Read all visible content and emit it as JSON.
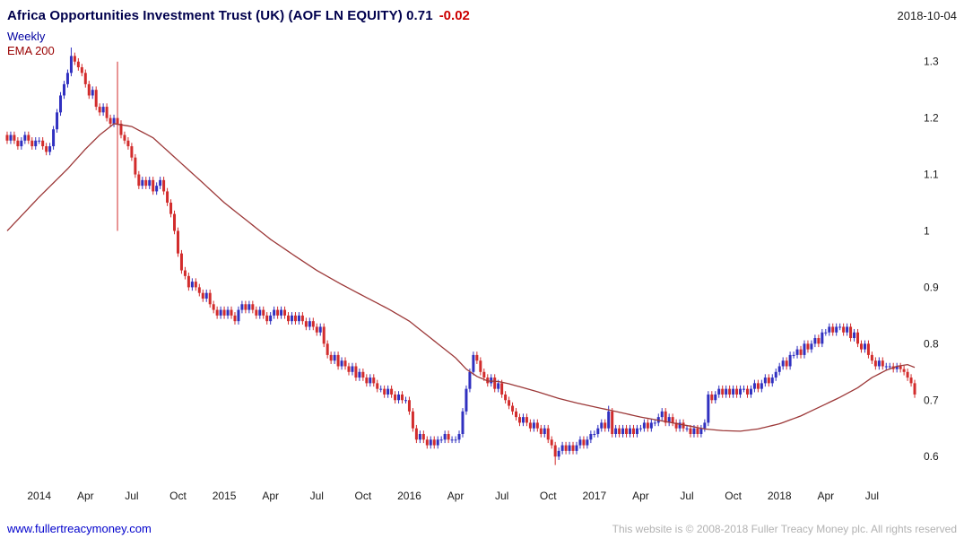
{
  "header": {
    "title": "Africa Opportunities Investment Trust (UK)  (AOF LN EQUITY) 0.71",
    "change": "-0.02",
    "date": "2018-10-04"
  },
  "legend": {
    "timeframe": "Weekly",
    "overlay": "EMA 200"
  },
  "footer": {
    "site": "www.fullertreacymoney.com",
    "copyright": "This website is © 2008-2018 Fuller Treacy Money plc. All rights reserved"
  },
  "colors": {
    "up_candle": "#3030c0",
    "down_candle": "#d22c2c",
    "ema_line": "#9c3838",
    "title_text": "#00004d",
    "change_text": "#cc0000",
    "weekly_label": "#0000a0",
    "ema_label": "#990000",
    "link": "#0000cc",
    "copyright": "#b2b2b2",
    "axis_text": "#1a1a1a"
  },
  "chart_data": {
    "type": "candlestick",
    "timeframe": "weekly",
    "instrument": "AOF LN EQUITY",
    "last_price": 0.71,
    "change": -0.02,
    "overlay": "EMA 200",
    "grid": false,
    "legend_position": "top-left",
    "ylim": [
      0.551,
      1.352
    ],
    "y_ticks": [
      0.6,
      0.7,
      0.8,
      0.9,
      1,
      1.1,
      1.2,
      1.3
    ],
    "x_ticks": [
      {
        "label": "2014",
        "week": 9
      },
      {
        "label": "Apr",
        "week": 22
      },
      {
        "label": "Jul",
        "week": 35
      },
      {
        "label": "Oct",
        "week": 48
      },
      {
        "label": "2015",
        "week": 61
      },
      {
        "label": "Apr",
        "week": 74
      },
      {
        "label": "Jul",
        "week": 87
      },
      {
        "label": "Oct",
        "week": 100
      },
      {
        "label": "2016",
        "week": 113
      },
      {
        "label": "Apr",
        "week": 126
      },
      {
        "label": "Jul",
        "week": 139
      },
      {
        "label": "Oct",
        "week": 152
      },
      {
        "label": "2017",
        "week": 165
      },
      {
        "label": "Apr",
        "week": 178
      },
      {
        "label": "Jul",
        "week": 191
      },
      {
        "label": "Oct",
        "week": 204
      },
      {
        "label": "2018",
        "week": 217
      },
      {
        "label": "Apr",
        "week": 230
      },
      {
        "label": "Jul",
        "week": 243
      }
    ],
    "first_open": 1.17,
    "closes": [
      1.16,
      1.17,
      1.16,
      1.15,
      1.16,
      1.17,
      1.16,
      1.15,
      1.16,
      1.16,
      1.15,
      1.14,
      1.15,
      1.18,
      1.21,
      1.24,
      1.26,
      1.28,
      1.31,
      1.3,
      1.29,
      1.28,
      1.26,
      1.24,
      1.25,
      1.22,
      1.21,
      1.22,
      1.2,
      1.19,
      1.2,
      1.19,
      1.17,
      1.16,
      1.15,
      1.13,
      1.1,
      1.08,
      1.09,
      1.08,
      1.09,
      1.07,
      1.08,
      1.09,
      1.07,
      1.05,
      1.03,
      1.0,
      0.96,
      0.93,
      0.92,
      0.9,
      0.91,
      0.9,
      0.89,
      0.88,
      0.89,
      0.87,
      0.86,
      0.85,
      0.86,
      0.85,
      0.86,
      0.85,
      0.84,
      0.86,
      0.87,
      0.86,
      0.87,
      0.86,
      0.85,
      0.86,
      0.85,
      0.84,
      0.85,
      0.86,
      0.85,
      0.86,
      0.85,
      0.84,
      0.85,
      0.84,
      0.85,
      0.84,
      0.83,
      0.84,
      0.83,
      0.82,
      0.83,
      0.8,
      0.78,
      0.77,
      0.78,
      0.76,
      0.77,
      0.76,
      0.75,
      0.76,
      0.74,
      0.75,
      0.74,
      0.73,
      0.74,
      0.73,
      0.72,
      0.72,
      0.71,
      0.72,
      0.71,
      0.7,
      0.71,
      0.7,
      0.7,
      0.68,
      0.65,
      0.63,
      0.64,
      0.63,
      0.62,
      0.63,
      0.62,
      0.63,
      0.63,
      0.64,
      0.63,
      0.63,
      0.63,
      0.64,
      0.68,
      0.72,
      0.75,
      0.78,
      0.77,
      0.75,
      0.74,
      0.73,
      0.74,
      0.72,
      0.73,
      0.71,
      0.7,
      0.69,
      0.68,
      0.67,
      0.66,
      0.67,
      0.66,
      0.65,
      0.66,
      0.65,
      0.64,
      0.65,
      0.63,
      0.62,
      0.6,
      0.61,
      0.62,
      0.61,
      0.62,
      0.61,
      0.62,
      0.63,
      0.62,
      0.63,
      0.64,
      0.64,
      0.65,
      0.66,
      0.65,
      0.68,
      0.64,
      0.65,
      0.64,
      0.65,
      0.64,
      0.65,
      0.64,
      0.65,
      0.65,
      0.66,
      0.65,
      0.66,
      0.66,
      0.67,
      0.68,
      0.66,
      0.67,
      0.66,
      0.65,
      0.66,
      0.65,
      0.65,
      0.64,
      0.65,
      0.64,
      0.65,
      0.66,
      0.71,
      0.7,
      0.71,
      0.72,
      0.71,
      0.72,
      0.71,
      0.72,
      0.71,
      0.72,
      0.72,
      0.71,
      0.72,
      0.73,
      0.72,
      0.73,
      0.74,
      0.73,
      0.74,
      0.75,
      0.76,
      0.77,
      0.76,
      0.78,
      0.78,
      0.79,
      0.78,
      0.8,
      0.79,
      0.8,
      0.81,
      0.8,
      0.82,
      0.82,
      0.83,
      0.82,
      0.83,
      0.83,
      0.82,
      0.83,
      0.81,
      0.82,
      0.8,
      0.79,
      0.8,
      0.78,
      0.77,
      0.76,
      0.77,
      0.76,
      0.76,
      0.76,
      0.755,
      0.76,
      0.755,
      0.75,
      0.74,
      0.73,
      0.71
    ],
    "wick_overrides": {
      "18": {
        "h": 1.325
      },
      "31": {
        "h": 1.3,
        "l": 1.0
      },
      "154": {
        "l": 0.585
      },
      "169": {
        "h": 0.69
      }
    },
    "ema_anchors": [
      [
        0,
        1.0
      ],
      [
        9,
        1.06
      ],
      [
        17,
        1.11
      ],
      [
        22,
        1.145
      ],
      [
        26,
        1.17
      ],
      [
        30,
        1.19
      ],
      [
        35,
        1.185
      ],
      [
        41,
        1.165
      ],
      [
        48,
        1.125
      ],
      [
        55,
        1.085
      ],
      [
        61,
        1.05
      ],
      [
        68,
        1.015
      ],
      [
        74,
        0.985
      ],
      [
        81,
        0.955
      ],
      [
        87,
        0.93
      ],
      [
        94,
        0.905
      ],
      [
        100,
        0.885
      ],
      [
        107,
        0.862
      ],
      [
        113,
        0.84
      ],
      [
        118,
        0.815
      ],
      [
        122,
        0.795
      ],
      [
        126,
        0.775
      ],
      [
        129,
        0.755
      ],
      [
        132,
        0.742
      ],
      [
        135,
        0.734
      ],
      [
        138,
        0.733
      ],
      [
        141,
        0.729
      ],
      [
        145,
        0.722
      ],
      [
        150,
        0.713
      ],
      [
        155,
        0.703
      ],
      [
        160,
        0.695
      ],
      [
        165,
        0.688
      ],
      [
        171,
        0.68
      ],
      [
        178,
        0.67
      ],
      [
        185,
        0.662
      ],
      [
        191,
        0.655
      ],
      [
        196,
        0.649
      ],
      [
        201,
        0.646
      ],
      [
        206,
        0.645
      ],
      [
        211,
        0.649
      ],
      [
        217,
        0.658
      ],
      [
        223,
        0.672
      ],
      [
        229,
        0.69
      ],
      [
        234,
        0.705
      ],
      [
        239,
        0.722
      ],
      [
        243,
        0.74
      ],
      [
        247,
        0.753
      ],
      [
        250,
        0.76
      ],
      [
        253,
        0.763
      ],
      [
        255,
        0.758
      ]
    ]
  }
}
